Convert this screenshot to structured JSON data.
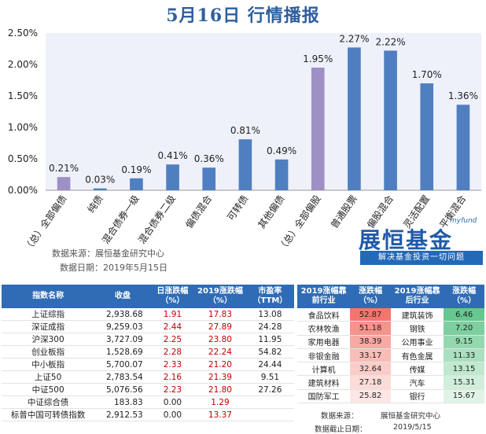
{
  "header": {
    "title": "5月16日  行情播报"
  },
  "chart_data": {
    "type": "bar",
    "categories": [
      "（总）全部偏债",
      "纯债",
      "混合债券一级",
      "混合债券二级",
      "偏债混合",
      "可转债",
      "其他偏债",
      "（总）全部偏股",
      "普通股票",
      "偏股混合",
      "灵活配置",
      "平衡混合"
    ],
    "values": [
      0.21,
      0.03,
      0.19,
      0.41,
      0.36,
      0.81,
      0.49,
      1.95,
      2.27,
      2.22,
      1.7,
      1.36
    ],
    "value_labels": [
      "0.21%",
      "0.03%",
      "0.19%",
      "0.41%",
      "0.36%",
      "0.81%",
      "0.49%",
      "1.95%",
      "2.27%",
      "2.22%",
      "1.70%",
      "1.36%"
    ],
    "bar_colors": [
      "#9e8fc4",
      "#4f7fc0",
      "#4f7fc0",
      "#4f7fc0",
      "#4f7fc0",
      "#4f7fc0",
      "#4f7fc0",
      "#9e8fc4",
      "#4f7fc0",
      "#4f7fc0",
      "#4f7fc0",
      "#4f7fc0"
    ],
    "ylim": [
      0,
      2.5
    ],
    "yticks": [
      "0.00%",
      "0.50%",
      "1.00%",
      "1.50%",
      "2.00%",
      "2.50%"
    ],
    "grid": false,
    "plot_background": "#eef1fa"
  },
  "source": {
    "line1": "数据来源：展恒基金研究中心",
    "line2": "数据日期：2019年5月15日"
  },
  "logo": {
    "myfund": "myfund",
    "name": "展恒基金",
    "slogan": "解决基金投资一切问题"
  },
  "index_table": {
    "headers": [
      "指数名称",
      "收盘",
      "日涨跌幅（%）",
      "2019涨跌幅（%）",
      "市盈率（TTM）"
    ],
    "rows": [
      [
        "上证综指",
        "2,938.68",
        "1.91",
        "17.83",
        "13.08"
      ],
      [
        "深证成指",
        "9,259.03",
        "2.44",
        "27.89",
        "24.28"
      ],
      [
        "沪深300",
        "3,727.09",
        "2.25",
        "23.80",
        "11.95"
      ],
      [
        "创业板指",
        "1,528.69",
        "2.28",
        "22.24",
        "54.82"
      ],
      [
        "中小板指",
        "5,700.07",
        "2.33",
        "21.20",
        "24.44"
      ],
      [
        "上证50",
        "2,783.54",
        "2.16",
        "21.39",
        "9.51"
      ],
      [
        "中证500",
        "5,076.56",
        "2.23",
        "21.80",
        "27.26"
      ],
      [
        "中证综合债",
        "183.83",
        "0.00",
        "1.29",
        ""
      ],
      [
        "标普中国可转债指数",
        "2,912.53",
        "0.00",
        "13.37",
        ""
      ]
    ]
  },
  "sector_table": {
    "headers": [
      "2019涨幅靠前行业",
      "涨跌幅（%）",
      "2019涨幅靠后行业",
      "涨跌幅（%）"
    ],
    "rows": [
      [
        "食品饮料",
        "52.87",
        "建筑装饰",
        "6.46"
      ],
      [
        "农林牧渔",
        "51.18",
        "钢铁",
        "7.20"
      ],
      [
        "家用电器",
        "38.39",
        "公用事业",
        "9.15"
      ],
      [
        "非银金融",
        "33.17",
        "有色金属",
        "11.33"
      ],
      [
        "计算机",
        "32.64",
        "传媒",
        "13.15"
      ],
      [
        "建筑材料",
        "27.18",
        "汽车",
        "15.31"
      ],
      [
        "国防军工",
        "25.82",
        "银行",
        "15.67"
      ]
    ],
    "left_colors": [
      "#f2766f",
      "#f5938c",
      "#f7aaa4",
      "#f9bcb7",
      "#fbcdc9",
      "#fcdcd8",
      "#fde6e3"
    ],
    "right_colors": [
      "#66c790",
      "#7ccf9f",
      "#94d8b0",
      "#a9e0bf",
      "#bfe8cd",
      "#d1eeda",
      "#e0f4e6"
    ]
  },
  "footer": {
    "source": "数据来源：",
    "source_value": "展恒基金研究中心",
    "date": "数据截止日期：",
    "date_value": "2019/5/15"
  }
}
